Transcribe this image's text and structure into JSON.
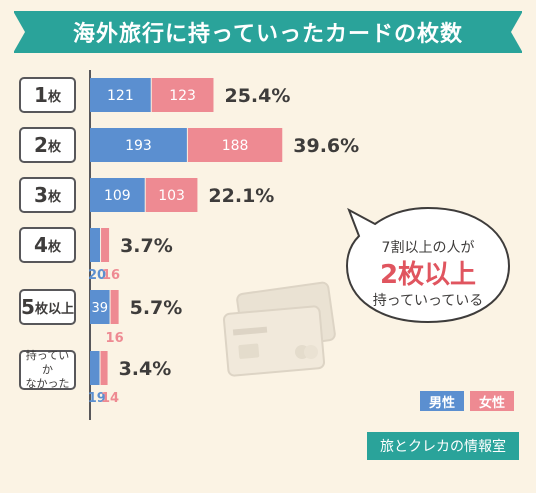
{
  "title": "海外旅行に持っていったカードの枚数",
  "chart_data": {
    "type": "bar",
    "stacked": true,
    "categories": [
      "1枚",
      "2枚",
      "3枚",
      "4枚",
      "5枚以上",
      "持っていかなかった"
    ],
    "series": [
      {
        "name": "男性",
        "values": [
          121,
          193,
          109,
          20,
          39,
          19
        ],
        "color": "#5b8fd0"
      },
      {
        "name": "女性",
        "values": [
          123,
          188,
          103,
          16,
          16,
          14
        ],
        "color": "#ee8a92"
      }
    ],
    "percent_labels": [
      "25.4%",
      "39.6%",
      "22.1%",
      "3.7%",
      "5.7%",
      "3.4%"
    ],
    "legend_position": "bottom-right"
  },
  "category_display": [
    {
      "main": "1",
      "suffix": "枚"
    },
    {
      "main": "2",
      "suffix": "枚"
    },
    {
      "main": "3",
      "suffix": "枚"
    },
    {
      "main": "4",
      "suffix": "枚"
    },
    {
      "main": "5",
      "suffix": "枚以上"
    },
    {
      "main": "持っていか\nなかった",
      "suffix": ""
    }
  ],
  "callout": {
    "line1": "7割以上の人が",
    "line2": "2枚以上",
    "line3": "持っていっている"
  },
  "legend": {
    "male": "男性",
    "female": "女性"
  },
  "brand": "旅とクレカの情報室",
  "colors": {
    "accent": "#2aa39a",
    "male": "#5b8fd0",
    "female": "#ee8a92",
    "background": "#fbf3e4"
  },
  "decoration_icon": "credit-cards-icon"
}
